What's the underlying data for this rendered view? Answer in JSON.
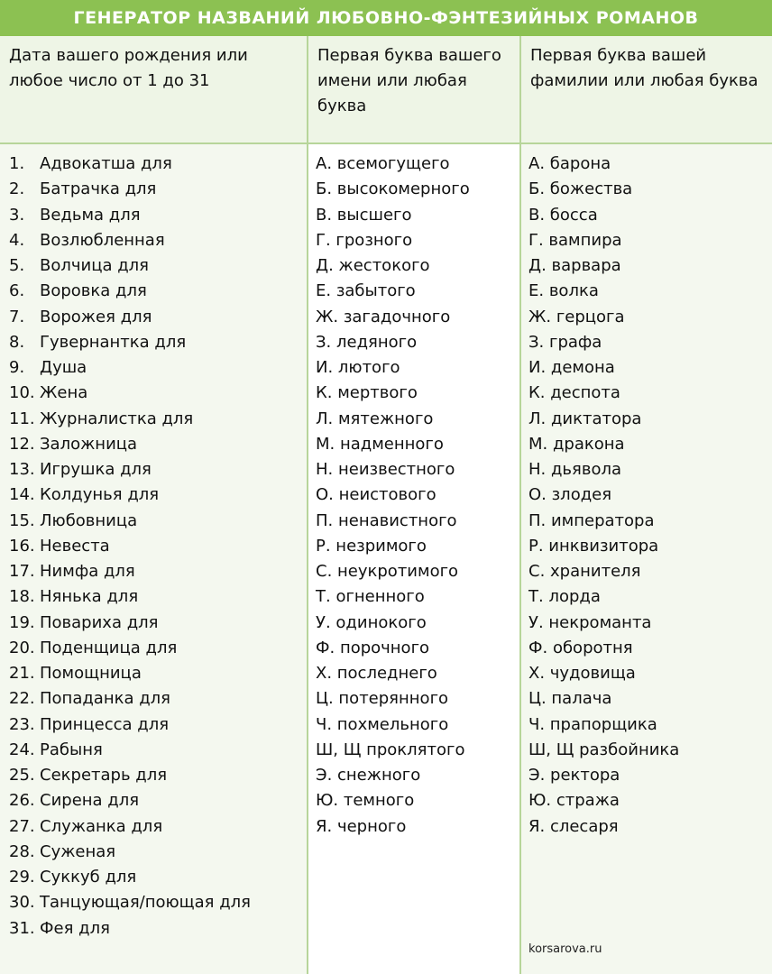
{
  "header": {
    "title": "ГЕНЕРАТОР НАЗВАНИЙ ЛЮБОВНО-ФЭНТЕЗИЙНЫХ РОМАНОВ"
  },
  "table": {
    "headers": [
      "Дата вашего рождения или любое число от 1 до 31",
      "Первая буква вашего имени или любая буква",
      "Первая буква вашей фамилии или любая буква"
    ],
    "numbers": [
      {
        "number": "1.",
        "text": "Адвокатша для"
      },
      {
        "number": "2.",
        "text": "Батрачка для"
      },
      {
        "number": "3.",
        "text": "Ведьма для"
      },
      {
        "number": "4.",
        "text": "Возлюбленная"
      },
      {
        "number": "5.",
        "text": "Волчица для"
      },
      {
        "number": "6.",
        "text": "Воровка для"
      },
      {
        "number": "7.",
        "text": "Ворожея для"
      },
      {
        "number": "8.",
        "text": "Гувернантка для"
      },
      {
        "number": "9.",
        "text": "Душа"
      },
      {
        "number": "10.",
        "text": "Жена"
      },
      {
        "number": "11.",
        "text": "Журналистка для"
      },
      {
        "number": "12.",
        "text": "Заложница"
      },
      {
        "number": "13.",
        "text": "Игрушка для"
      },
      {
        "number": "14.",
        "text": "Колдунья для"
      },
      {
        "number": "15.",
        "text": "Любовница"
      },
      {
        "number": "16.",
        "text": "Невеста"
      },
      {
        "number": "17.",
        "text": "Нимфа для"
      },
      {
        "number": "18.",
        "text": "Нянька для"
      },
      {
        "number": "19.",
        "text": "Повариха для"
      },
      {
        "number": "20.",
        "text": "Поденщица для"
      },
      {
        "number": "21.",
        "text": "Помощница"
      },
      {
        "number": "22.",
        "text": "Попаданка для"
      },
      {
        "number": "23.",
        "text": "Принцесса для"
      },
      {
        "number": "24.",
        "text": "Рабыня"
      },
      {
        "number": "25.",
        "text": "Секретарь для"
      },
      {
        "number": "26.",
        "text": "Сирена для"
      },
      {
        "number": "27.",
        "text": "Служанка для"
      },
      {
        "number": "28.",
        "text": "Суженая"
      },
      {
        "number": "29.",
        "text": "Суккуб для"
      },
      {
        "number": "30.",
        "text": "Танцующая/поющая для"
      },
      {
        "number": "31.",
        "text": "Фея для"
      }
    ],
    "first_names": [
      "А. всемогущего",
      "Б. высокомерного",
      "В. высшего",
      "Г. грозного",
      "Д. жестокого",
      "Е. забытого",
      "Ж. загадочного",
      "З. ледяного",
      "И. лютого",
      "К. мертвого",
      "Л. мятежного",
      "М. надменного",
      "Н. неизвестного",
      "О. неистового",
      "П. ненавистного",
      "Р. незримого",
      "С. неукротимого",
      "Т. огненного",
      "У. одинокого",
      "Ф. порочного",
      "Х. последнего",
      "Ц. потерянного",
      "Ч. похмельного",
      "Ш, Щ проклятого",
      "Э. снежного",
      "Ю. темного",
      "Я. черного"
    ],
    "last_names": [
      "А. барона",
      "Б. божества",
      "В. босса",
      "Г. вампира",
      "Д. варвара",
      "Е. волка",
      "Ж. герцога",
      "З. графа",
      "И. демона",
      "К. деспота",
      "Л. диктатора",
      "М. дракона",
      "Н. дьявола",
      "О. злодея",
      "П. императора",
      "Р. инквизитора",
      "С. хранителя",
      "Т. лорда",
      "У. некроманта",
      "Ф. оборотня",
      "Х. чудовища",
      "Ц. палача",
      "Ч. прапорщика",
      "Ш, Щ разбойника",
      "Э. ректора",
      "Ю. стража",
      "Я. слесаря"
    ]
  },
  "footer": "korsarova.ru"
}
